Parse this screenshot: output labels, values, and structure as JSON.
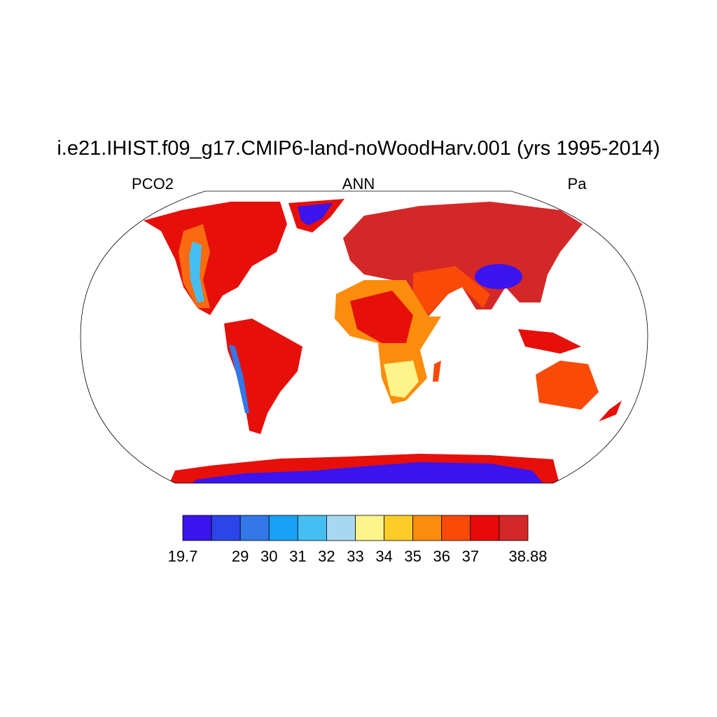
{
  "header": {
    "title": "i.e21.IHIST.f09_g17.CMIP6-land-noWoodHarv.001 (yrs 1995-2014)",
    "left": "PCO2",
    "center": "ANN",
    "right": "Pa"
  },
  "colorbar": {
    "colors": [
      "#3b14f0",
      "#2a45e8",
      "#3377e8",
      "#18a0f5",
      "#45bff2",
      "#a8d8f0",
      "#fff48a",
      "#fccc28",
      "#fb8c0c",
      "#fa4a08",
      "#e80a0a",
      "#d42828"
    ],
    "boundary_labels": [
      "19.7",
      null,
      "29",
      "30",
      "31",
      "32",
      "33",
      "34",
      "35",
      "36",
      "37",
      null,
      "38.88"
    ]
  }
}
